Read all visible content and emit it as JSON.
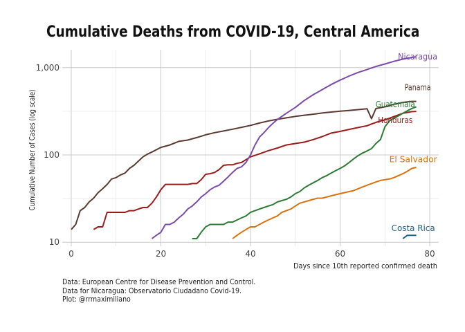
{
  "chart_data": {
    "type": "line",
    "title": "Cumulative Deaths from COVID-19, Central America",
    "xlabel": "Days since 10th reported confirmed death",
    "ylabel": "Cumulative Number of Cases (log scale)",
    "xlim": [
      -2,
      82
    ],
    "ylim": [
      9.0,
      1600
    ],
    "log_y": true,
    "x_ticks": [
      0,
      20,
      40,
      60,
      80
    ],
    "x_tick_labels": [
      "0",
      "20",
      "40",
      "60",
      "80"
    ],
    "y_ticks": [
      10,
      100,
      1000
    ],
    "y_tick_labels": [
      "10",
      "100",
      "1,000"
    ],
    "grid": true,
    "legend": "none (direct labels at line ends)",
    "series": [
      {
        "name": "Panama",
        "color": "#5a3a30",
        "x": [
          0,
          1,
          2,
          3,
          4,
          5,
          6,
          7,
          8,
          9,
          10,
          11,
          12,
          13,
          14,
          15,
          16,
          17,
          18,
          20,
          22,
          24,
          26,
          28,
          30,
          32,
          34,
          36,
          38,
          40,
          42,
          44,
          46,
          48,
          50,
          52,
          54,
          56,
          58,
          60,
          62,
          64,
          66,
          67,
          68,
          70,
          72,
          74,
          76,
          77
        ],
        "y": [
          14,
          16,
          23,
          25,
          29,
          32,
          37,
          41,
          46,
          53,
          55,
          59,
          62,
          70,
          76,
          85,
          95,
          102,
          108,
          122,
          130,
          143,
          148,
          158,
          170,
          180,
          188,
          197,
          207,
          218,
          232,
          245,
          256,
          266,
          276,
          285,
          293,
          302,
          310,
          317,
          323,
          330,
          338,
          260,
          340,
          355,
          380,
          400,
          410,
          410
        ]
      },
      {
        "name": "Honduras",
        "color": "#9b1a1a",
        "x": [
          5,
          6,
          7,
          8,
          9,
          10,
          11,
          12,
          13,
          14,
          15,
          16,
          17,
          18,
          19,
          20,
          21,
          22,
          24,
          26,
          27,
          28,
          29,
          30,
          31,
          32,
          33,
          34,
          35,
          36,
          37,
          38,
          40,
          42,
          44,
          46,
          48,
          50,
          52,
          54,
          56,
          58,
          60,
          62,
          64,
          66,
          67,
          68,
          70,
          72,
          74,
          76,
          77
        ],
        "y": [
          14,
          15,
          15,
          22,
          22,
          22,
          22,
          22,
          23,
          23,
          24,
          25,
          25,
          28,
          33,
          40,
          46,
          46,
          46,
          46,
          47,
          47,
          52,
          60,
          61,
          63,
          68,
          76,
          77,
          77,
          80,
          82,
          95,
          103,
          112,
          120,
          130,
          135,
          140,
          150,
          162,
          178,
          186,
          196,
          206,
          216,
          226,
          236,
          252,
          275,
          300,
          313,
          315
        ]
      },
      {
        "name": "Nicaragua",
        "color": "#7a4aa8",
        "x": [
          18,
          19,
          20,
          21,
          22,
          23,
          24,
          25,
          26,
          27,
          28,
          29,
          30,
          31,
          32,
          33,
          34,
          35,
          36,
          37,
          38,
          39,
          40,
          41,
          42,
          43,
          44,
          45,
          46,
          48,
          50,
          52,
          54,
          56,
          58,
          60,
          62,
          64,
          66,
          68,
          70,
          72,
          74,
          76,
          77
        ],
        "y": [
          11,
          12,
          13,
          16,
          16,
          17,
          19,
          21,
          24,
          26,
          29,
          33,
          36,
          40,
          43,
          45,
          50,
          56,
          63,
          70,
          73,
          82,
          100,
          130,
          160,
          180,
          205,
          230,
          255,
          300,
          350,
          420,
          490,
          560,
          640,
          720,
          800,
          880,
          950,
          1030,
          1100,
          1180,
          1250,
          1310,
          1330
        ]
      },
      {
        "name": "Guatemala",
        "color": "#2a7a33",
        "x": [
          27,
          28,
          29,
          30,
          31,
          32,
          33,
          34,
          35,
          36,
          37,
          38,
          39,
          40,
          41,
          42,
          43,
          44,
          45,
          46,
          47,
          48,
          49,
          50,
          51,
          52,
          53,
          54,
          55,
          56,
          57,
          58,
          59,
          60,
          61,
          62,
          63,
          64,
          65,
          66,
          67,
          68,
          69,
          70,
          71,
          72,
          73,
          74,
          75,
          76,
          77
        ],
        "y": [
          11,
          11,
          13,
          15,
          16,
          16,
          16,
          16,
          17,
          17,
          18,
          19,
          20,
          22,
          23,
          24,
          25,
          26,
          27,
          29,
          30,
          31,
          33,
          36,
          38,
          42,
          45,
          48,
          51,
          55,
          58,
          62,
          66,
          70,
          75,
          82,
          90,
          98,
          105,
          111,
          118,
          135,
          150,
          210,
          245,
          265,
          280,
          300,
          320,
          340,
          355
        ]
      },
      {
        "name": "El Salvador",
        "color": "#d9720b",
        "x": [
          36,
          37,
          38,
          39,
          40,
          41,
          42,
          43,
          44,
          45,
          46,
          47,
          48,
          49,
          50,
          51,
          52,
          53,
          54,
          55,
          56,
          57,
          58,
          59,
          60,
          61,
          62,
          63,
          64,
          65,
          66,
          67,
          68,
          69,
          70,
          71,
          72,
          73,
          74,
          75,
          76,
          77
        ],
        "y": [
          11,
          12,
          13,
          14,
          15,
          15,
          16,
          17,
          18,
          19,
          20,
          22,
          23,
          24,
          26,
          28,
          29,
          30,
          31,
          32,
          32,
          33,
          34,
          35,
          36,
          37,
          38,
          39,
          41,
          43,
          45,
          47,
          49,
          51,
          52,
          53,
          55,
          58,
          61,
          65,
          70,
          72
        ]
      },
      {
        "name": "Costa Rica",
        "color": "#1c5f8c",
        "x": [
          74,
          75,
          76,
          77
        ],
        "y": [
          11,
          12,
          12,
          12
        ]
      }
    ],
    "direct_labels": [
      {
        "series": "Nicaragua",
        "text": "Nicaragua",
        "color": "#7a4aa8",
        "x": 77,
        "y": 1330
      },
      {
        "series": "Panama",
        "text": "Panama",
        "color": "#5a3a30",
        "x": 77,
        "y": 590
      },
      {
        "series": "Guatemala",
        "text": "Guatemala",
        "color": "#2a7a33",
        "x": 72,
        "y": 380
      },
      {
        "series": "Honduras",
        "text": "Honduras",
        "color": "#9b1a1a",
        "x": 72,
        "y": 250
      },
      {
        "series": "El Salvador",
        "text": "El Salvador",
        "color": "#d9720b",
        "x": 76,
        "y": 89
      },
      {
        "series": "Costa Rica",
        "text": "Costa Rica",
        "color": "#1c5f8c",
        "x": 76,
        "y": 14.5
      }
    ]
  },
  "caption": {
    "line1": "Data: European Centre for Disease Prevention and Control.",
    "line2": "Data for Nicaragua: Observatorio Ciudadano Covid-19.",
    "line3": "Plot: @rrmaximiliano"
  }
}
